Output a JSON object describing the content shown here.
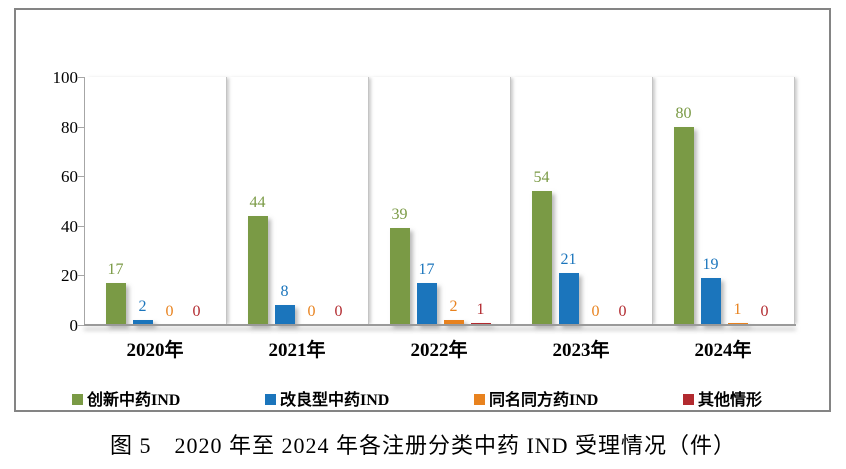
{
  "figure": {
    "caption": "图 5　2020 年至 2024 年各注册分类中药 IND 受理情况（件）"
  },
  "chart_data": {
    "type": "bar",
    "title": "图 5　2020 年至 2024 年各注册分类中药 IND 受理情况（件）",
    "categories": [
      "2020年",
      "2021年",
      "2022年",
      "2023年",
      "2024年"
    ],
    "series": [
      {
        "name": "创新中药IND",
        "color": "#7A9A45",
        "values": [
          17,
          44,
          39,
          54,
          80
        ]
      },
      {
        "name": "改良型中药IND",
        "color": "#1B75BC",
        "values": [
          2,
          8,
          17,
          21,
          19
        ]
      },
      {
        "name": "同名同方药IND",
        "color": "#E8821E",
        "values": [
          0,
          0,
          2,
          0,
          1
        ]
      },
      {
        "name": "其他情形",
        "color": "#B22A2F",
        "values": [
          0,
          0,
          1,
          0,
          0
        ]
      }
    ],
    "xlabel": "",
    "ylabel": "",
    "ylim": [
      0,
      100
    ],
    "yticks": [
      100,
      80,
      60,
      40,
      20,
      0
    ],
    "grid": "vertical category separators only",
    "legend_position": "bottom",
    "value_labels": true
  }
}
